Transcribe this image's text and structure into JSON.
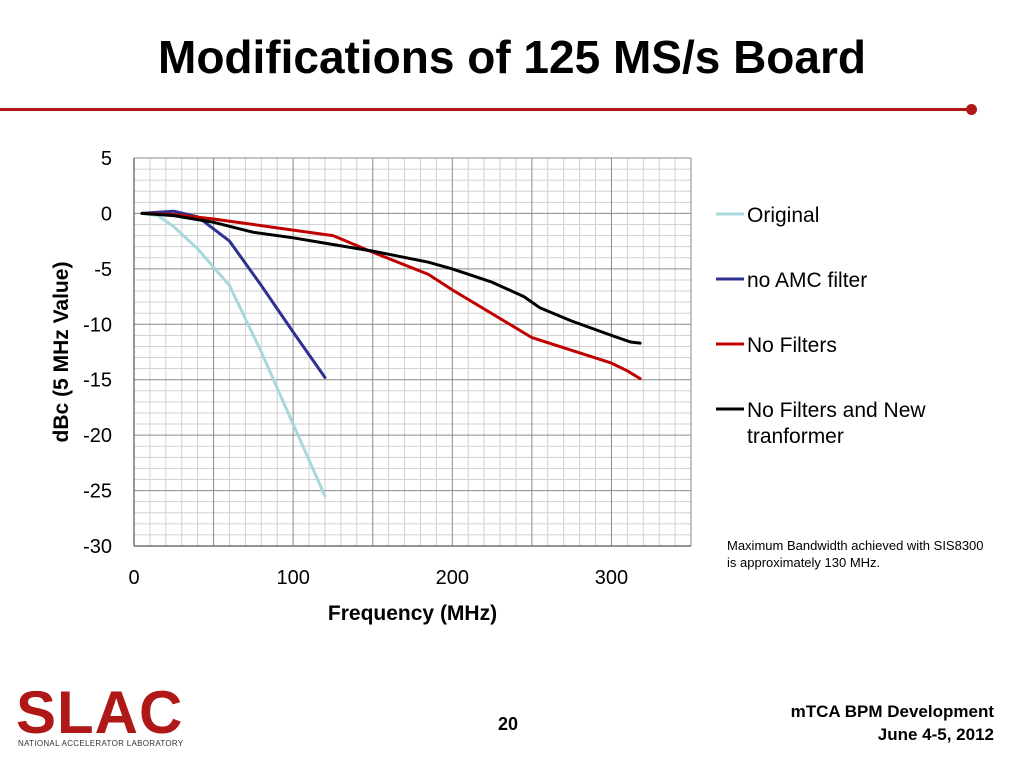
{
  "slide": {
    "title": "Modifications of 125 MS/s Board",
    "note": "Maximum Bandwidth achieved with SIS8300 is approximately 130 MHz.",
    "page_number": "20",
    "footer_line1": "mTCA BPM Development",
    "footer_line2": "June 4-5, 2012",
    "logo_text": "SLAC",
    "logo_subtext": "NATIONAL ACCELERATOR LABORATORY",
    "accent_color": "#b01818"
  },
  "chart_data": {
    "type": "line",
    "title": "",
    "xlabel": "Frequency (MHz)",
    "ylabel": "dBc (5 MHz Value)",
    "xlim": [
      0,
      350
    ],
    "ylim": [
      -30,
      5
    ],
    "xticks": [
      "0",
      "100",
      "200",
      "300"
    ],
    "yticks": [
      "5",
      "0",
      "-5",
      "-10",
      "-15",
      "-20",
      "-25",
      "-30"
    ],
    "grid": true,
    "legend_position": "right",
    "series": [
      {
        "name": "Original",
        "color": "#a8d8dc",
        "x": [
          5,
          15,
          25,
          40,
          60,
          80,
          100,
          120
        ],
        "y": [
          0,
          -0.2,
          -1.2,
          -3.2,
          -6.5,
          -12.5,
          -19.0,
          -25.5
        ]
      },
      {
        "name": "no AMC filter",
        "color": "#2e3192",
        "x": [
          5,
          15,
          25,
          40,
          60,
          80,
          100,
          120
        ],
        "y": [
          0,
          0.1,
          0.2,
          -0.3,
          -2.5,
          -6.5,
          -10.7,
          -14.8
        ]
      },
      {
        "name": "No Filters",
        "color": "#c00000",
        "x": [
          5,
          25,
          50,
          75,
          100,
          125,
          130,
          150,
          185,
          200,
          250,
          300,
          310,
          318
        ],
        "y": [
          0,
          -0.1,
          -0.5,
          -1.0,
          -1.5,
          -2.0,
          -2.3,
          -3.5,
          -5.5,
          -6.9,
          -11.2,
          -13.5,
          -14.2,
          -14.9
        ]
      },
      {
        "name": "No Filters and New tranformer",
        "color": "#000000",
        "x": [
          5,
          25,
          50,
          75,
          100,
          125,
          150,
          185,
          200,
          225,
          245,
          255,
          275,
          300,
          312,
          318
        ],
        "y": [
          0,
          -0.2,
          -0.8,
          -1.7,
          -2.2,
          -2.8,
          -3.4,
          -4.4,
          -5.0,
          -6.2,
          -7.5,
          -8.5,
          -9.7,
          -11.0,
          -11.6,
          -11.7
        ]
      }
    ]
  }
}
